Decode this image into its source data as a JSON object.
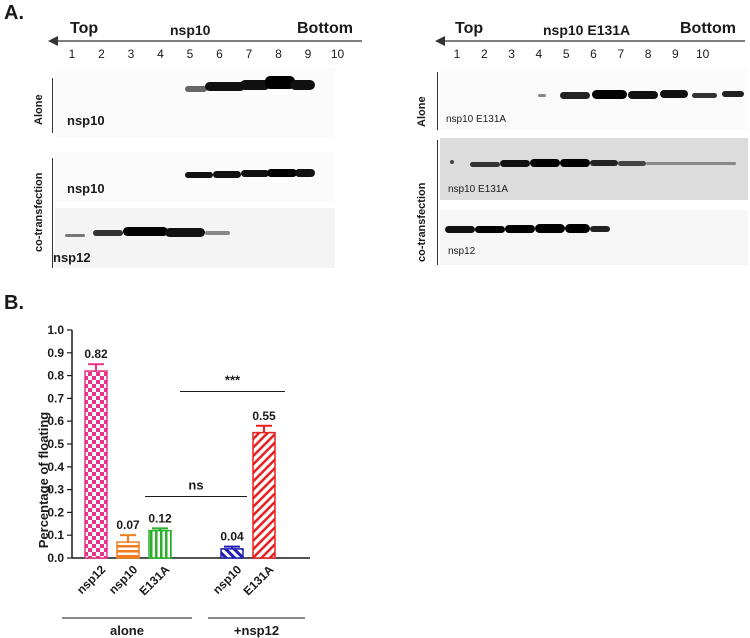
{
  "panel_a": {
    "label": "A.",
    "left": {
      "top_label": "Top",
      "title": "nsp10",
      "bottom_label": "Bottom",
      "lanes": [
        "1",
        "2",
        "3",
        "4",
        "5",
        "6",
        "7",
        "8",
        "9",
        "10"
      ],
      "side_alone": "Alone",
      "side_cotrans": "co-transfection",
      "blot_alone_label": "nsp10",
      "blot_co1_label": "nsp10",
      "blot_co2_label": "nsp12"
    },
    "right": {
      "top_label": "Top",
      "title": "nsp10 E131A",
      "bottom_label": "Bottom",
      "lanes": [
        "1",
        "2",
        "3",
        "4",
        "5",
        "6",
        "7",
        "8",
        "9",
        "10"
      ],
      "side_alone": "Alone",
      "side_cotrans": "co-transfection",
      "blot_alone_label": "nsp10 E131A",
      "blot_co1_label": "nsp10 E131A",
      "blot_co2_label": "nsp12"
    }
  },
  "panel_b": {
    "label": "B."
  },
  "chart_data": {
    "type": "bar",
    "ylabel": "Percentage of floating",
    "ylim": [
      0,
      1.0
    ],
    "yticks": [
      "0.0",
      "0.1",
      "0.2",
      "0.3",
      "0.4",
      "0.5",
      "0.6",
      "0.7",
      "0.8",
      "0.9",
      "1.0"
    ],
    "bars": [
      {
        "label": "nsp12",
        "value": 0.82,
        "value_label": "0.82",
        "error": 0.03,
        "color": "#e8338a",
        "pattern": "checker"
      },
      {
        "label": "nsp10",
        "value": 0.07,
        "value_label": "0.07",
        "error": 0.03,
        "color": "#f07c1c",
        "pattern": "hlines"
      },
      {
        "label": "E131A",
        "value": 0.12,
        "value_label": "0.12",
        "error": 0.01,
        "color": "#2ab12a",
        "pattern": "vlines"
      },
      {
        "label": "nsp10",
        "value": 0.04,
        "value_label": "0.04",
        "error": 0.01,
        "color": "#1f1fb0",
        "pattern": "diag"
      },
      {
        "label": "E131A",
        "value": 0.55,
        "value_label": "0.55",
        "error": 0.03,
        "color": "#e82020",
        "pattern": "diag"
      }
    ],
    "groups": [
      {
        "label": "alone"
      },
      {
        "label": "+nsp12"
      }
    ],
    "significance": [
      {
        "label": "ns"
      },
      {
        "label": "***"
      }
    ]
  }
}
